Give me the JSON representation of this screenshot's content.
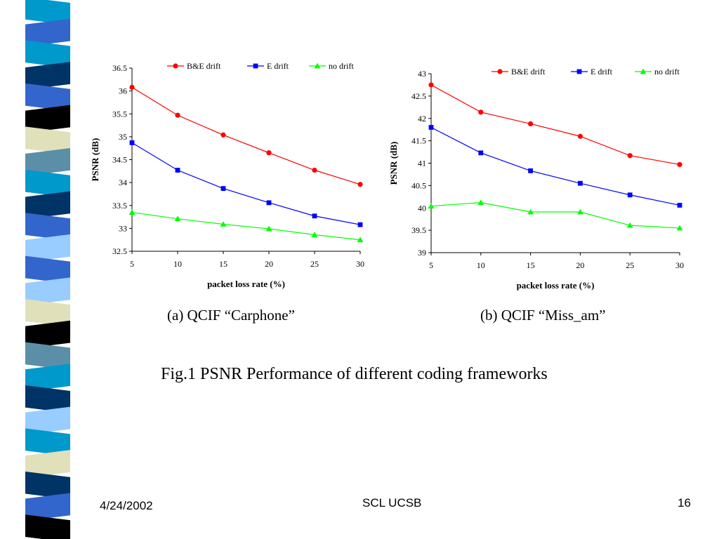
{
  "slide": {
    "caption_a": "(a) QCIF “Carphone”",
    "caption_b": "(b) QCIF “Miss_am”",
    "figure_title": "Fig.1 PSNR Performance of different coding frameworks",
    "footer_date": "4/24/2002",
    "footer_center": "SCL UCSB",
    "page_number": "16"
  },
  "colors": {
    "strip": [
      "#0099cc",
      "#5b8fa8",
      "#003366",
      "#3366cc",
      "#000000",
      "#e0e0bb",
      "#99ccff"
    ],
    "be_drift": "#ff0000",
    "e_drift": "#0000ff",
    "no_drift": "#00ff00"
  },
  "chart_data": [
    {
      "type": "line",
      "title": "",
      "xlabel": "packet loss rate (%)",
      "ylabel": "PSNR (dB)",
      "x": [
        5,
        10,
        15,
        20,
        25,
        30
      ],
      "xlim": [
        5,
        30
      ],
      "ylim": [
        32.5,
        36.5
      ],
      "xticks": [
        "5",
        "10",
        "15",
        "20",
        "25",
        "30"
      ],
      "yticks": [
        "32.5",
        "33",
        "33.5",
        "34",
        "34.5",
        "35",
        "35.5",
        "36",
        "36.5"
      ],
      "grid": false,
      "legend": "top",
      "series": [
        {
          "name": "B&E drift",
          "color": "#ff0000",
          "marker": "circle",
          "values": [
            36.08,
            35.47,
            35.04,
            34.65,
            34.27,
            33.96
          ]
        },
        {
          "name": "E drift",
          "color": "#0000ff",
          "marker": "square",
          "values": [
            34.87,
            34.27,
            33.87,
            33.56,
            33.27,
            33.08
          ]
        },
        {
          "name": "no drift",
          "color": "#00ff00",
          "marker": "triangle",
          "values": [
            33.35,
            33.21,
            33.09,
            32.99,
            32.86,
            32.75
          ]
        }
      ]
    },
    {
      "type": "line",
      "title": "",
      "xlabel": "packet loss rate (%)",
      "ylabel": "PSNR (dB)",
      "x": [
        5,
        10,
        15,
        20,
        25,
        30
      ],
      "xlim": [
        5,
        30
      ],
      "ylim": [
        39,
        43
      ],
      "xticks": [
        "5",
        "10",
        "15",
        "20",
        "25",
        "30"
      ],
      "yticks": [
        "39",
        "39.5",
        "40",
        "40.5",
        "41",
        "41.5",
        "42",
        "42.5",
        "43"
      ],
      "grid": false,
      "legend": "top",
      "series": [
        {
          "name": "B&E drift",
          "color": "#ff0000",
          "marker": "circle",
          "values": [
            42.75,
            42.14,
            41.88,
            41.6,
            41.17,
            40.97
          ]
        },
        {
          "name": "E drift",
          "color": "#0000ff",
          "marker": "square",
          "values": [
            41.8,
            41.23,
            40.83,
            40.55,
            40.29,
            40.06
          ]
        },
        {
          "name": "no drift",
          "color": "#00ff00",
          "marker": "triangle",
          "values": [
            40.04,
            40.12,
            39.91,
            39.91,
            39.61,
            39.55
          ]
        }
      ]
    }
  ]
}
